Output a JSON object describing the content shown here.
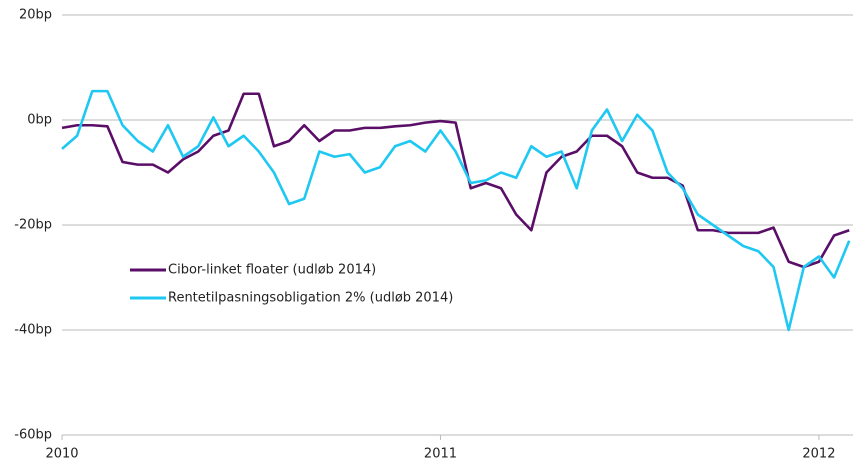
{
  "chart_data": {
    "type": "line",
    "x": [
      2010,
      2010.04,
      2010.08,
      2010.12,
      2010.16,
      2010.2,
      2010.24,
      2010.28,
      2010.32,
      2010.36,
      2010.4,
      2010.44,
      2010.48,
      2010.52,
      2010.56,
      2010.6,
      2010.64,
      2010.68,
      2010.72,
      2010.76,
      2010.8,
      2010.84,
      2010.88,
      2010.92,
      2010.96,
      2011,
      2011.04,
      2011.08,
      2011.12,
      2011.16,
      2011.2,
      2011.24,
      2011.28,
      2011.32,
      2011.36,
      2011.4,
      2011.44,
      2011.48,
      2011.52,
      2011.56,
      2011.6,
      2011.64,
      2011.68,
      2011.72,
      2011.76,
      2011.8,
      2011.84,
      2011.88,
      2011.92,
      2011.96,
      2012,
      2012.04,
      2012.08
    ],
    "series": [
      {
        "name": "Cibor-linket floater (udløb 2014)",
        "color": "#5a0e68",
        "values": [
          -1.5,
          -1,
          -1,
          -1.2,
          -8,
          -8.5,
          -8.5,
          -10,
          -7.5,
          -6,
          -3,
          -2,
          5,
          5,
          -5,
          -4,
          -1,
          -4,
          -2,
          -2,
          -1.5,
          -1.5,
          -1.2,
          -1,
          -0.5,
          -0.2,
          -0.5,
          -13,
          -12,
          -13,
          -18,
          -21,
          -10,
          -7,
          -6,
          -3,
          -3,
          -5,
          -10,
          -11,
          -11,
          -12.5,
          -21,
          -21,
          -21.5,
          -21.5,
          -21.5,
          -20.5,
          -27,
          -28,
          -27,
          -22,
          -21
        ]
      },
      {
        "name": "Rentetilpasningsobligation 2% (udløb 2014)",
        "color": "#1ec8f2",
        "values": [
          -5.5,
          -3,
          5.5,
          5.5,
          -1,
          -4,
          -6,
          -1,
          -7,
          -5,
          0.5,
          -5,
          -3,
          -6,
          -10,
          -16,
          -15,
          -6,
          -7,
          -6.5,
          -10,
          -9,
          -5,
          -4,
          -6,
          -2,
          -6,
          -12,
          -11.5,
          -10,
          -11,
          -5,
          -7,
          -6,
          -13,
          -2,
          2,
          -4,
          1,
          -2,
          -10,
          -13,
          -18,
          -20,
          -22,
          -24,
          -25,
          -28,
          -40,
          -28,
          -26,
          -30,
          -23
        ]
      }
    ],
    "xlim": [
      2010,
      2012.09
    ],
    "xticks": [
      2010,
      2011,
      2012
    ],
    "ylim": [
      -60,
      20
    ],
    "yticks": [
      {
        "value": 20,
        "label": "20bp"
      },
      {
        "value": 0,
        "label": "0bp"
      },
      {
        "value": -20,
        "label": "-20bp"
      },
      {
        "value": -40,
        "label": "-40bp"
      },
      {
        "value": -60,
        "label": "-60bp"
      }
    ],
    "grid": true,
    "legend": "center left"
  }
}
